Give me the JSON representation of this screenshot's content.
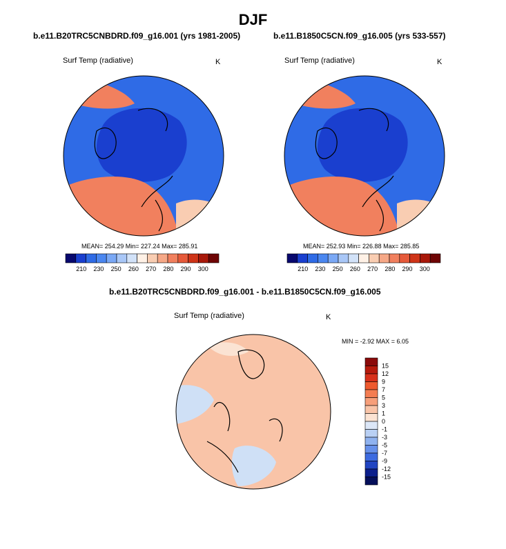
{
  "page": {
    "title": "DJF"
  },
  "panels": [
    {
      "case": "b.e11.B20TRC5CNBDRD.f09_g16.001 (yrs 1981-2005)",
      "variable": "Surf Temp (radiative)",
      "units": "K",
      "stats": "MEAN= 254.29  Min= 227.24  Max= 285.91"
    },
    {
      "case": "b.e11.B1850C5CN.f09_g16.005 (yrs 533-557)",
      "variable": "Surf Temp (radiative)",
      "units": "K",
      "stats": "MEAN= 252.93  Min= 226.88  Max= 285.85"
    }
  ],
  "colorbar_abs": {
    "labels": [
      "210",
      "230",
      "250",
      "260",
      "270",
      "280",
      "290",
      "300"
    ],
    "colors": [
      "#08086e",
      "#1a3fcf",
      "#2f6be6",
      "#4b87f0",
      "#7aa8f5",
      "#a9c7f7",
      "#d2e2f8",
      "#fff1e6",
      "#f9cdb2",
      "#f6a887",
      "#f1805e",
      "#e65a3a",
      "#cf3418",
      "#a8180a",
      "#6e0505"
    ]
  },
  "difference": {
    "title": "b.e11.B20TRC5CNBDRD.f09_g16.001 - b.e11.B1850C5CN.f09_g16.005",
    "variable": "Surf Temp (radiative)",
    "units": "K",
    "minmax": "MIN =  -2.92 MAX =   6.05"
  },
  "colorbar_diff": {
    "labels": [
      "15",
      "12",
      "9",
      "7",
      "5",
      "3",
      "1",
      "0",
      "-1",
      "-3",
      "-5",
      "-7",
      "-9",
      "-12",
      "-15"
    ],
    "colors": [
      "#8a0a0a",
      "#b61a0c",
      "#d8301a",
      "#ee5a2e",
      "#f47d52",
      "#f79f7a",
      "#f9c4a8",
      "#fbe3d3",
      "#dce7f8",
      "#b9d0f4",
      "#8fb2ef",
      "#6690ea",
      "#3d6be0",
      "#2145c2",
      "#0c1f8c",
      "#050f5a"
    ]
  },
  "colors": {
    "ocean_cold": "#2f6be6",
    "ice_deep": "#1a3fcf",
    "warm": "#f1805e",
    "diff_warm": "#f9c4a8",
    "diff_cool": "#cfe0f6"
  }
}
